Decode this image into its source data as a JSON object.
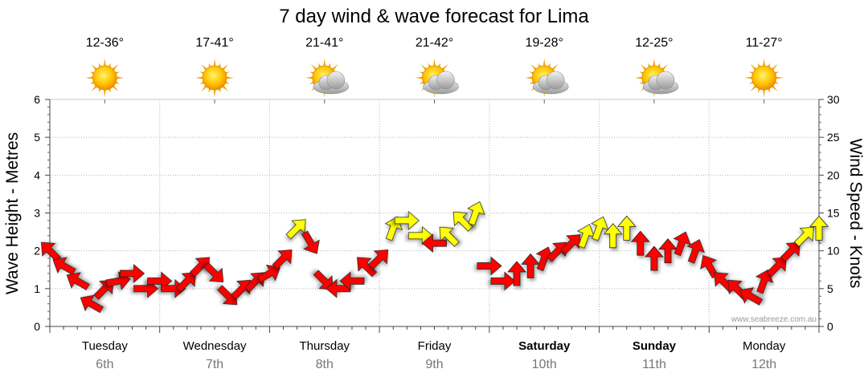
{
  "chart_data": {
    "type": "line",
    "title": "7 day wind & wave forecast for Lima",
    "ylabel": "Wave Height - Metres",
    "y2label": "Wind Speed - Knots",
    "ylim": [
      0,
      6
    ],
    "y2lim": [
      0,
      30
    ],
    "yticks": [
      "0",
      "1",
      "2",
      "3",
      "4",
      "5",
      "6"
    ],
    "y2ticks": [
      "0",
      "5",
      "10",
      "15",
      "20",
      "25",
      "30"
    ],
    "grid": true,
    "watermark": "www.seabreeze.com.au",
    "days": [
      {
        "name": "Tuesday",
        "date": "6th",
        "bold": false,
        "temp": "12-36°",
        "icon": "sun-icon"
      },
      {
        "name": "Wednesday",
        "date": "7th",
        "bold": false,
        "temp": "17-41°",
        "icon": "sun-icon"
      },
      {
        "name": "Thursday",
        "date": "8th",
        "bold": false,
        "temp": "21-41°",
        "icon": "sun-cloud-icon"
      },
      {
        "name": "Friday",
        "date": "9th",
        "bold": false,
        "temp": "21-42°",
        "icon": "sun-cloud-icon"
      },
      {
        "name": "Saturday",
        "date": "10th",
        "bold": true,
        "temp": "19-28°",
        "icon": "sun-cloud-icon"
      },
      {
        "name": "Sunday",
        "date": "11th",
        "bold": true,
        "temp": "12-25°",
        "icon": "sun-cloud-icon"
      },
      {
        "name": "Monday",
        "date": "12th",
        "bold": false,
        "temp": "11-27°",
        "icon": "sun-icon"
      }
    ],
    "series": [
      {
        "name": "Wind Speed (arrows)",
        "hours": [
          0,
          3,
          6,
          9,
          12,
          15,
          18,
          21,
          24,
          27,
          30,
          33,
          36,
          39,
          42,
          45,
          48,
          51,
          54,
          57,
          60,
          63,
          66,
          69,
          72,
          75,
          78,
          81,
          84,
          87,
          90,
          93,
          96,
          99,
          102,
          105,
          108,
          111,
          114,
          117,
          120,
          123,
          126,
          129,
          132,
          135,
          138,
          141,
          144,
          147,
          150,
          153,
          156,
          159,
          162,
          165,
          168
        ],
        "values": [
          10,
          8,
          6,
          3,
          5,
          6,
          7,
          5,
          6,
          5,
          6,
          8,
          7,
          4,
          5,
          6,
          7,
          9,
          13,
          11,
          6,
          5,
          6,
          8,
          9,
          13,
          14,
          12,
          11,
          12,
          14,
          15,
          8,
          6,
          7,
          8,
          9,
          10,
          11,
          12,
          13,
          12,
          13,
          11,
          9,
          10,
          11,
          10,
          8,
          6,
          5,
          4,
          6,
          8,
          10,
          12,
          13
        ],
        "direction_deg": [
          315,
          300,
          300,
          300,
          45,
          80,
          90,
          90,
          90,
          90,
          45,
          45,
          135,
          135,
          45,
          45,
          60,
          45,
          45,
          150,
          135,
          270,
          270,
          315,
          45,
          20,
          90,
          90,
          270,
          315,
          315,
          20,
          90,
          90,
          0,
          0,
          20,
          45,
          45,
          20,
          20,
          0,
          0,
          0,
          0,
          0,
          20,
          20,
          330,
          315,
          315,
          300,
          20,
          45,
          45,
          45,
          0
        ]
      }
    ]
  }
}
